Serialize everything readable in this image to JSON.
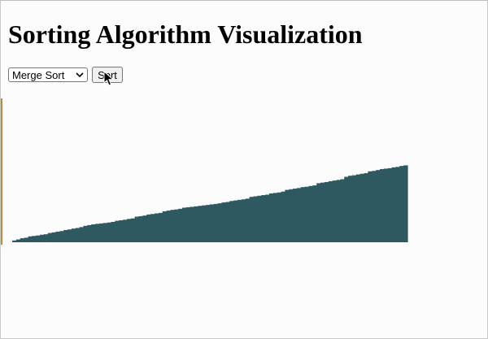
{
  "page": {
    "title": "Sorting Algorithm Visualization"
  },
  "controls": {
    "algorithm_selected": "Merge Sort",
    "sort_label": "Sort"
  },
  "icons": {
    "dropdown": "chevron-down-icon",
    "cursor": "mouse-pointer-icon"
  },
  "colors": {
    "bar": "#2e5961"
  },
  "visualization": {
    "state": "sorted ascending",
    "bar_count": 100,
    "value_range": [
      0,
      100
    ]
  }
}
